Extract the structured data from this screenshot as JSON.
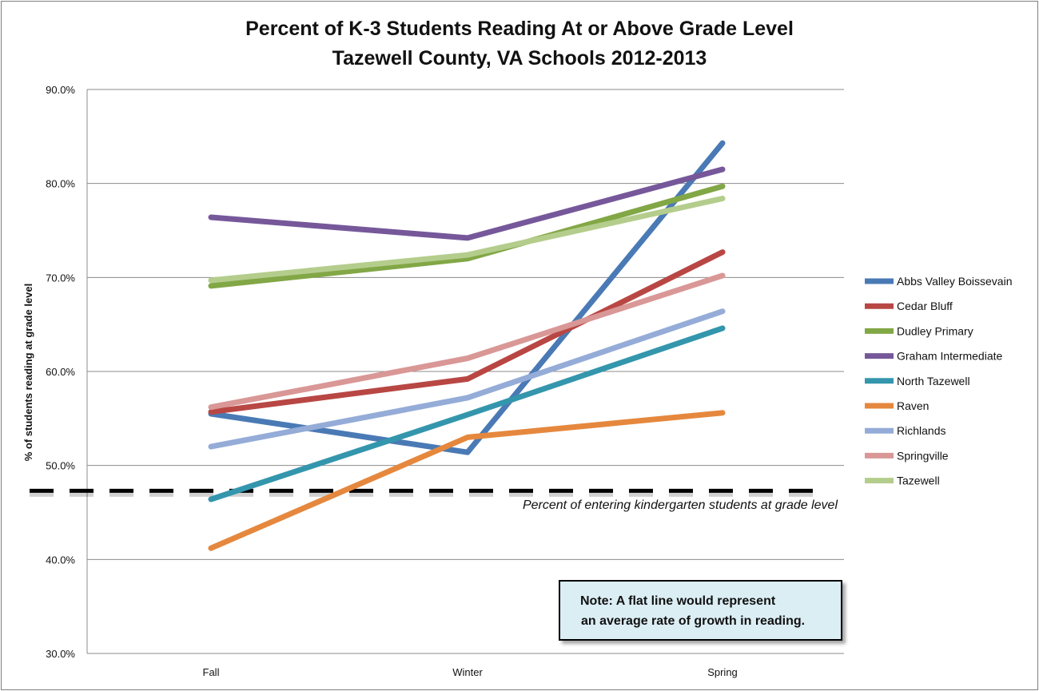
{
  "chart_data": {
    "type": "line",
    "title_lines": [
      "Percent of K-3 Students Reading At or Above Grade Level",
      "Tazewell County, VA Schools 2012-2013"
    ],
    "xlabel": "",
    "ylabel": "% of students reading at grade level",
    "categories": [
      "Fall",
      "Winter",
      "Spring"
    ],
    "ylim": [
      30,
      90
    ],
    "yticks": [
      "30.0%",
      "40.0%",
      "50.0%",
      "60.0%",
      "70.0%",
      "80.0%",
      "90.0%"
    ],
    "ytick_values": [
      30,
      40,
      50,
      60,
      70,
      80,
      90
    ],
    "grid": true,
    "legend_position": "right",
    "series": [
      {
        "name": "Abbs Valley Boissevain",
        "color": "#4a7ab5",
        "values": [
          55.5,
          51.4,
          84.3
        ]
      },
      {
        "name": "Cedar Bluff",
        "color": "#b84744",
        "values": [
          55.7,
          59.2,
          72.7
        ]
      },
      {
        "name": "Dudley Primary",
        "color": "#82a746",
        "values": [
          69.1,
          72.0,
          79.7
        ]
      },
      {
        "name": "Graham Intermediate",
        "color": "#76589a",
        "values": [
          76.4,
          74.2,
          81.5
        ]
      },
      {
        "name": "North Tazewell",
        "color": "#3496ad",
        "values": [
          46.4,
          55.4,
          64.6
        ]
      },
      {
        "name": "Raven",
        "color": "#e5883e",
        "values": [
          41.2,
          53.0,
          55.6
        ]
      },
      {
        "name": "Richlands",
        "color": "#94acd7",
        "values": [
          52.0,
          57.2,
          66.4
        ]
      },
      {
        "name": "Springville",
        "color": "#d99796",
        "values": [
          56.2,
          61.4,
          70.2
        ]
      },
      {
        "name": "Tazewell",
        "color": "#b4cd8c",
        "values": [
          69.7,
          72.4,
          78.4
        ]
      }
    ],
    "reference_line": {
      "value": 47.3,
      "label": "Percent of entering kindergarten students at grade level"
    },
    "note": {
      "line1": "Note: A flat line would represent",
      "line2": "an average rate of growth in reading."
    }
  }
}
